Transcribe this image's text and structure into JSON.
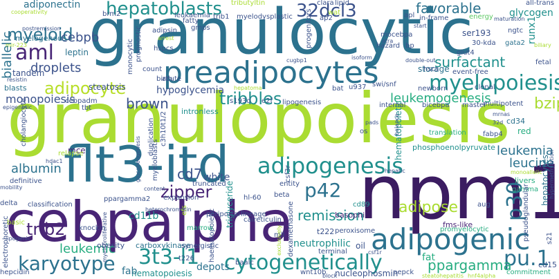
{
  "colors": {
    "background": "#ffffff",
    "dark_purple": "#482576",
    "indigo": "#3b528b",
    "blue": "#2c728e",
    "teal": "#21908d",
    "sea_green": "#27ad81",
    "green": "#5cc863",
    "lime": "#aadc32",
    "light_lime": "#b8de29"
  },
  "words": {
    "granulocytic": "granulocytic",
    "granulopoiesis": "granulopoiesis",
    "npm1": "npm1",
    "cebpalpha": "cebpalpha",
    "flt3itd": "flt3-itd",
    "preadipocytes": "preadipocytes",
    "adipogenic": "adipogenic",
    "adipogenesis": "adipogenesis",
    "cytogenetically": "cytogenetically",
    "myelopoiesis": "myelopoiesis",
    "hepatoblasts": "hepatoblasts",
    "dcl3": "32dcl3",
    "aml": "aml",
    "myeloid": "myeloid",
    "adipocyte": "adipocyte",
    "tribbles": "tribbles",
    "karyotype": "karyotype",
    "t3l1": "3t3-l1",
    "pu1": "pu.1",
    "p42": "p42",
    "p30": "p30",
    "trib2": "trib2",
    "zipper": "zipper",
    "adipose": "adipose",
    "leukemic": "leukemic",
    "surfactant": "surfactant",
    "bzip": "bzip",
    "favorable": "favorable",
    "leukemogenesis": "leukemogenesis",
    "droplets": "droplets",
    "biallelic": "biallelic",
    "cebpb": "cebpb",
    "remission": "remission",
    "leucine": "leucine",
    "leukemia": "leukemia",
    "brown": "brown",
    "monopoiesis": "monopoiesis",
    "albumin": "albumin",
    "cd7": "cd7",
    "pparggamma": "ppargamma",
    "fat": "fat",
    "glycogen": "glycogen",
    "adiponectin": "adiponectin",
    "hypoglycemia": "hypoglycemia",
    "neutrophilic": "neutrophilic",
    "myelogenous": "myelogenous",
    "leptin": "leptin",
    "tandem": "tandem",
    "cd11b": "cd11b",
    "storage": "storage",
    "ser193": "ser193",
    "runx1": "runx1",
    "gata2": "gata2",
    "energy": "energy",
    "white": "white",
    "hepatocytes": "hepatocytes",
    "hematopoietic": "hematopoietic",
    "steatosis": "steatosis",
    "intronless": "intronless",
    "mce": "mce",
    "blasts": "blasts",
    "commitment": "commitment",
    "triglyceride": "triglyceride",
    "hematopoiesis": "hematopoiesis",
    "carboxykinase": "carboxykinase",
    "depots": "depots",
    "fab": "fab",
    "obesity": "obesity",
    "basophil": "basophil",
    "phosphoenolpyruvate": "phosphoenolpyruvate",
    "red": "red",
    "fmslike": "fms-like",
    "cd34": "cd34",
    "cd15": "cd15",
    "livers": "livers",
    "t222": "t222",
    "synergistic": "synergistic",
    "nucleophosmin": "nucleophosmin",
    "translation": "translation",
    "cd89": "cd89",
    "promyelocytic": "promyelocytic",
    "monocytic": "monocytic",
    "tribulin": "tributyltin",
    "trib1": "trib1",
    "myelodysplastic": "myelodysplastic",
    "mocebpa": "mocebpa",
    "lipid": "lipid",
    "wat": "wat",
    "clara": "clara",
    "lipogenesis": "lipogenesis",
    "acute": "acute",
    "truncated": "truncated",
    "periportal": "periportal",
    "marrow": "marrow",
    "lineage": "lineage",
    "aug": "aug",
    "gamma": "gamma",
    "fetal": "fetal",
    "count": "count",
    "clonal": "clonal",
    "multipotent": "multipotent",
    "internal": "internal",
    "bicebpa": "bicebpa",
    "hscs": "hscs",
    "bat": "bat",
    "ppargamma2": "ppargamma2",
    "definitive": "definitive",
    "cholangiocyte": "cholangiocyte",
    "glut4": "glut4",
    "apl": "apl",
    "inframe": "in-frame",
    "kda": "30-kda",
    "hazard": "hazard",
    "atra": "atra",
    "bp": "bp",
    "ap2": "ap2",
    "fatty": "fatty",
    "gmps": "gmps",
    "adipsin": "adipsin",
    "brm2": "brm2",
    "leukaemia": "leukaemia",
    "hspcs": "hspcs",
    "birth": "birth",
    "cugbp1": "cugbp1",
    "s193d": "s193d",
    "e2f": "e2f",
    "hepatoma": "hepatoma",
    "u937": "u937",
    "swisnf": "swi/snf",
    "newborn": "newborn",
    "eventfree": "event-free",
    "master": "master",
    "fabp4": "fabp4",
    "expansion": "expansion",
    "hl60": "hl-60",
    "csf3r": "csf3r",
    "beta": "beta",
    "mll": "mll",
    "peroxisome": "peroxisome",
    "t226": "t226",
    "baalc": "baalc",
    "wnt10b": "wnt10b",
    "block": "block",
    "pepck": "pepck",
    "hepcidin": "hepcidin",
    "basic": "basic",
    "delta": "delta",
    "classification": "classification",
    "knockin": "knockin",
    "oil": "oil",
    "terminal": "terminal",
    "s21": "s21",
    "allTrans": "all-trans",
    "ngtc": "ngtc",
    "maturation": "maturation",
    "start": "start",
    "cooperativity": "cooperativity",
    "postremission": "postremission",
    "mir223": "mir-223",
    "arrest": "arrest",
    "progenitors": "progenitors",
    "prognostic": "prognostic",
    "hdac1": "hdac1",
    "relapse": "relapse",
    "epigenetic": "epigenetic",
    "cebpadm": "cebpadm",
    "tbt": "tbt",
    "resistin": "resistin",
    "myeloblasts": "myeloblasts",
    "c3h10t12": "c3h10t1/2",
    "duplication": "duplication",
    "content": "content",
    "gluconeogenesis": "gluconeogenesis",
    "heterochromatin": "heterochromatin",
    "efs": "efs",
    "calreticulin": "calreticulin",
    "entity": "entity",
    "dexamethasone": "dexamethasone",
    "exclusively": "exclusively",
    "haematopoietic": "haematopoietic",
    "myeloproliferative": "myeloproliferative",
    "electrophoretic": "electrophoretic",
    "mobility": "mobility",
    "lipogenic": "lipogenic",
    "steatohepatitis": "steatohepatitis",
    "hnf4alpha": "hnf4alpha",
    "pseudoglandular": "pseudoglandular",
    "hypermethylation": "hypermethylation",
    "monoallelic": "monoallelic",
    "pads": "pads",
    "doubleout": "double-out",
    "isoform": "isoform",
    "mrnas": "mrnas",
    "d32": "32d",
    "os": "os",
    "balance": "balance",
    "csf1r": "csf1r",
    "biliary": "biliary",
    "hepatic": "hepatic"
  }
}
